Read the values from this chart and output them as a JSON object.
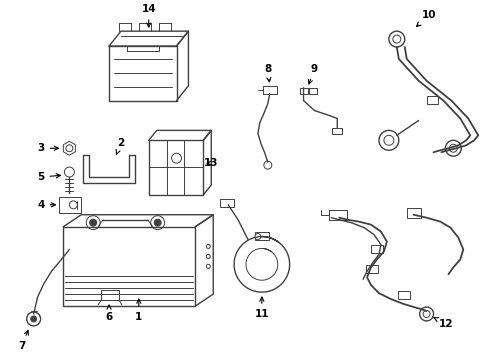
{
  "background_color": "#ffffff",
  "line_color": "#404040",
  "text_color": "#000000",
  "figure_width": 4.9,
  "figure_height": 3.6,
  "dpi": 100
}
